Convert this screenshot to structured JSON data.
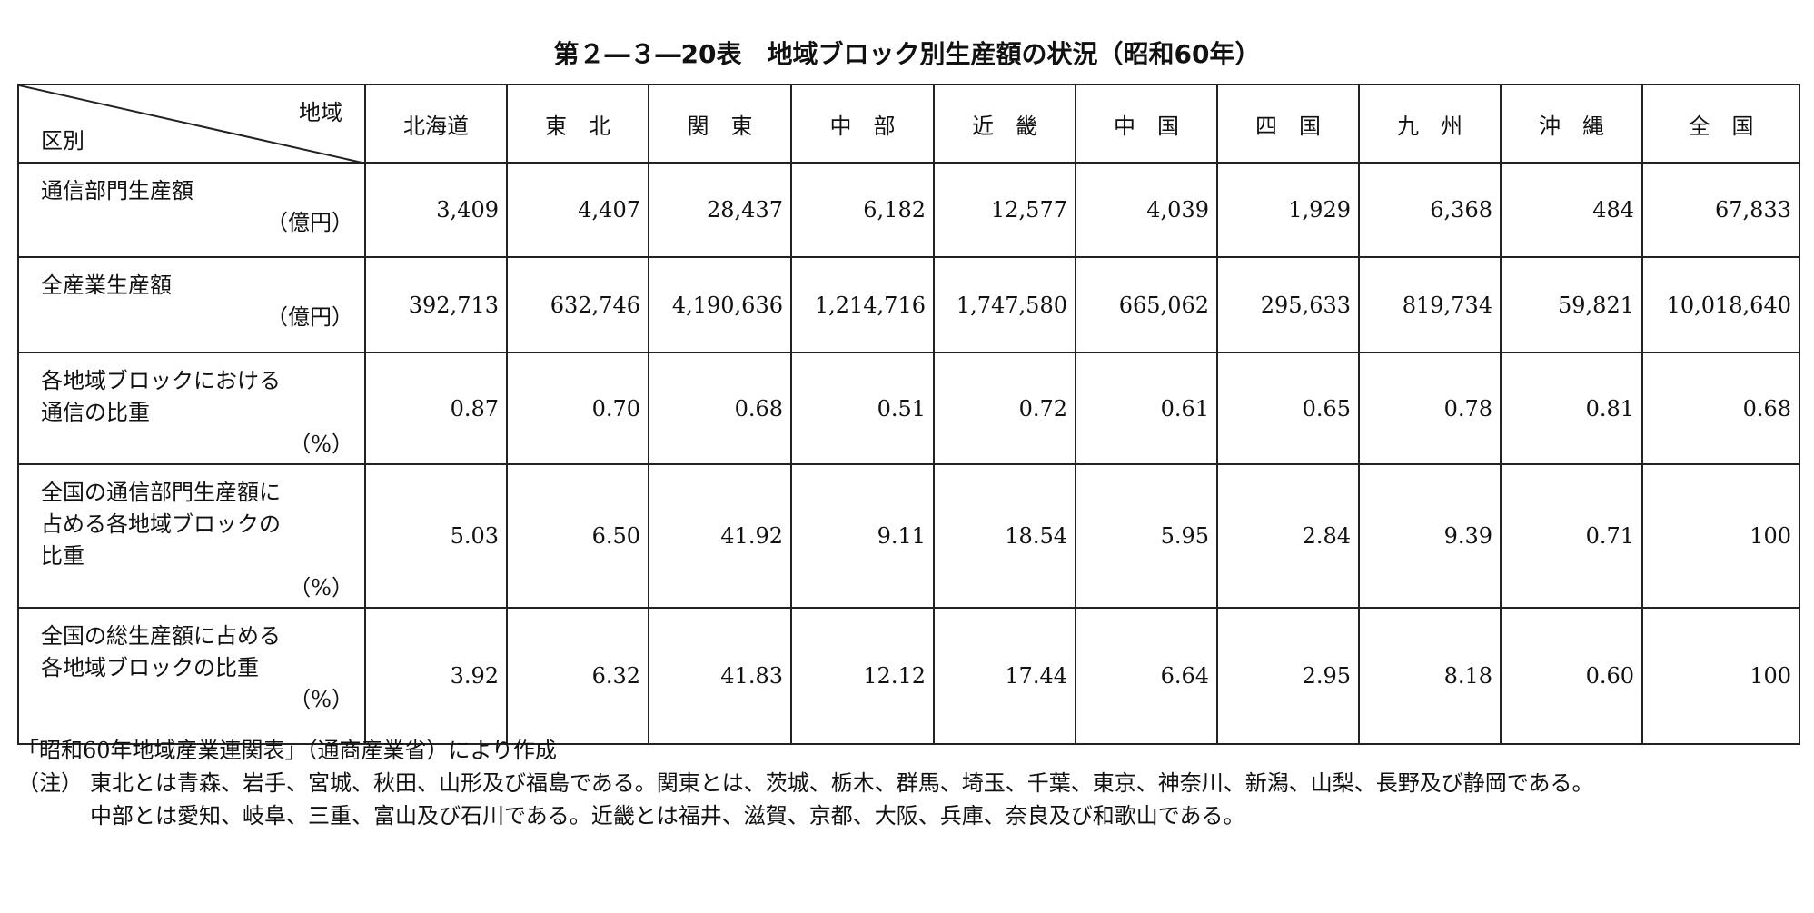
{
  "title": "第２―３―20表　地域ブロック別生産額の状況（昭和60年）",
  "table": {
    "corner": {
      "column_header": "地域",
      "row_header": "区別"
    },
    "columns": [
      "北海道",
      "東　北",
      "関　東",
      "中　部",
      "近　畿",
      "中　国",
      "四　国",
      "九　州",
      "沖　縄",
      "全　国"
    ],
    "rows": [
      {
        "label": [
          "通信部門生産額"
        ],
        "unit": "（億円）",
        "values": [
          "3,409",
          "4,407",
          "28,437",
          "6,182",
          "12,577",
          "4,039",
          "1,929",
          "6,368",
          "484",
          "67,833"
        ]
      },
      {
        "label": [
          "全産業生産額"
        ],
        "unit": "（億円）",
        "values": [
          "392,713",
          "632,746",
          "4,190,636",
          "1,214,716",
          "1,747,580",
          "665,062",
          "295,633",
          "819,734",
          "59,821",
          "10,018,640"
        ]
      },
      {
        "label": [
          "各地域ブロックにおける",
          "通信の比重"
        ],
        "unit": "（%）",
        "values": [
          "0.87",
          "0.70",
          "0.68",
          "0.51",
          "0.72",
          "0.61",
          "0.65",
          "0.78",
          "0.81",
          "0.68"
        ]
      },
      {
        "label": [
          "全国の通信部門生産額に",
          "占める各地域ブロックの",
          "比重"
        ],
        "unit": "（%）",
        "values": [
          "5.03",
          "6.50",
          "41.92",
          "9.11",
          "18.54",
          "5.95",
          "2.84",
          "9.39",
          "0.71",
          "100"
        ]
      },
      {
        "label": [
          "全国の総生産額に占める",
          "各地域ブロックの比重"
        ],
        "unit": "（%）",
        "values": [
          "3.92",
          "6.32",
          "41.83",
          "12.12",
          "17.44",
          "6.64",
          "2.95",
          "8.18",
          "0.60",
          "100"
        ]
      }
    ]
  },
  "notes": {
    "source": "「昭和60年地域産業連関表」（通商産業省）により作成",
    "marker": "（注）",
    "lines": [
      "東北とは青森、岩手、宮城、秋田、山形及び福島である。関東とは、茨城、栃木、群馬、埼玉、千葉、東京、神奈川、新潟、山梨、長野及び静岡である。",
      "中部とは愛知、岐阜、三重、富山及び石川である。近畿とは福井、滋賀、京都、大阪、兵庫、奈良及び和歌山である。"
    ]
  }
}
